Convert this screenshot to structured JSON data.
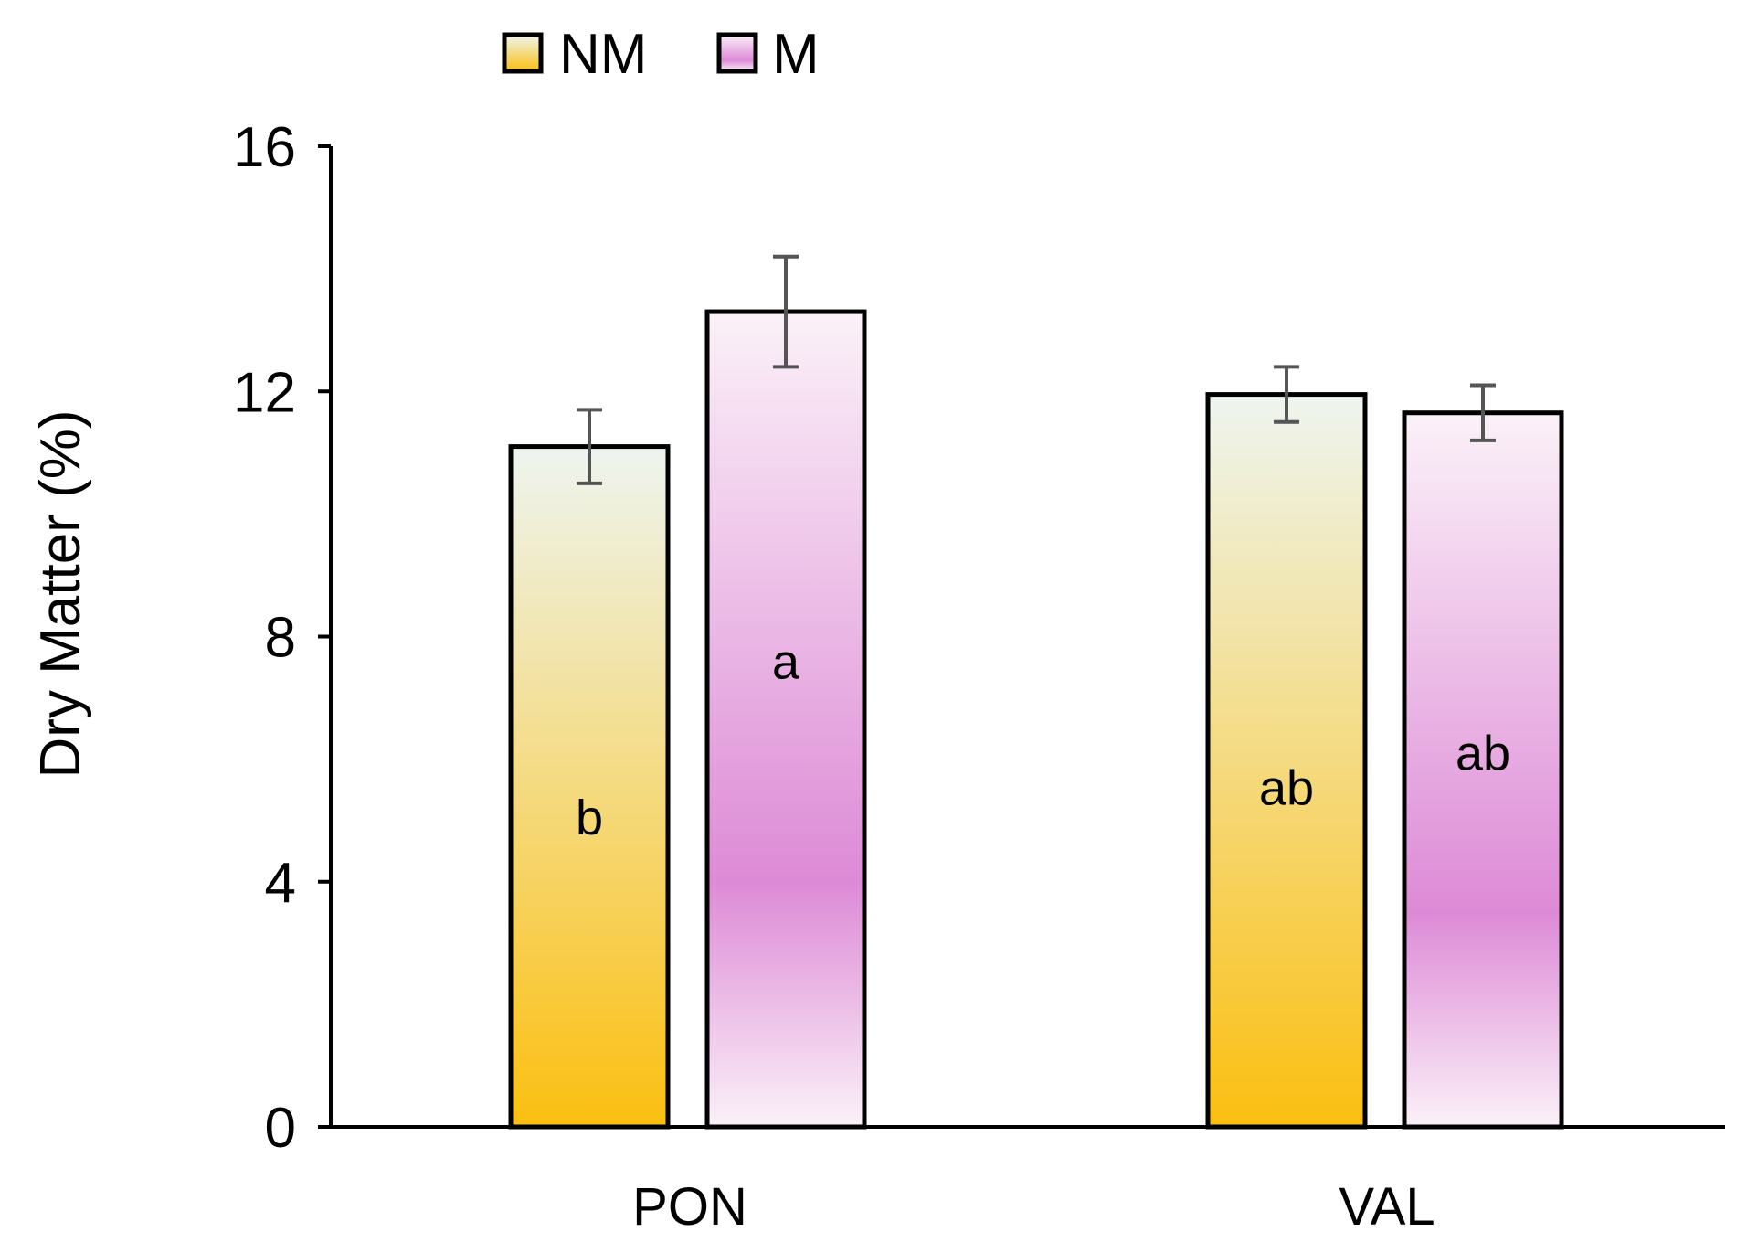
{
  "chart_data": {
    "type": "bar",
    "title": "",
    "xlabel": "",
    "ylabel": "Dry Matter (%)",
    "ylim": [
      0,
      16
    ],
    "yticks": [
      0,
      4,
      8,
      12,
      16
    ],
    "categories": [
      "PON",
      "VAL"
    ],
    "series": [
      {
        "name": "NM",
        "color_top": "#eef5f0",
        "color_bottom": "#fbbf10",
        "values": [
          11.1,
          11.95
        ],
        "errors": [
          0.6,
          0.45
        ],
        "labels": [
          "b",
          "ab"
        ]
      },
      {
        "name": "M",
        "color_top": "#fbf1f8",
        "color_bottom": "#dd8ad6",
        "values": [
          13.3,
          11.65
        ],
        "errors": [
          0.9,
          0.45
        ],
        "labels": [
          "a",
          "ab"
        ]
      }
    ],
    "legend_position": "top-left",
    "grid": false
  }
}
